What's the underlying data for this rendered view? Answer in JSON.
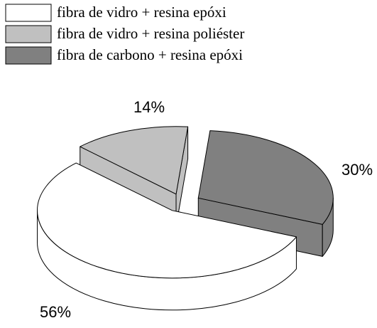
{
  "chart_data": {
    "type": "pie3d",
    "categories": [
      "fibra de vidro + resina epóxi",
      "fibra de vidro + resina poliéster",
      "fibra de carbono + resina epóxi"
    ],
    "values": [
      56,
      14,
      30
    ],
    "value_labels": [
      "56%",
      "14%",
      "30%"
    ],
    "colors": [
      "#ffffff",
      "#c0c0c0",
      "#808080"
    ],
    "legend": "top-left"
  }
}
